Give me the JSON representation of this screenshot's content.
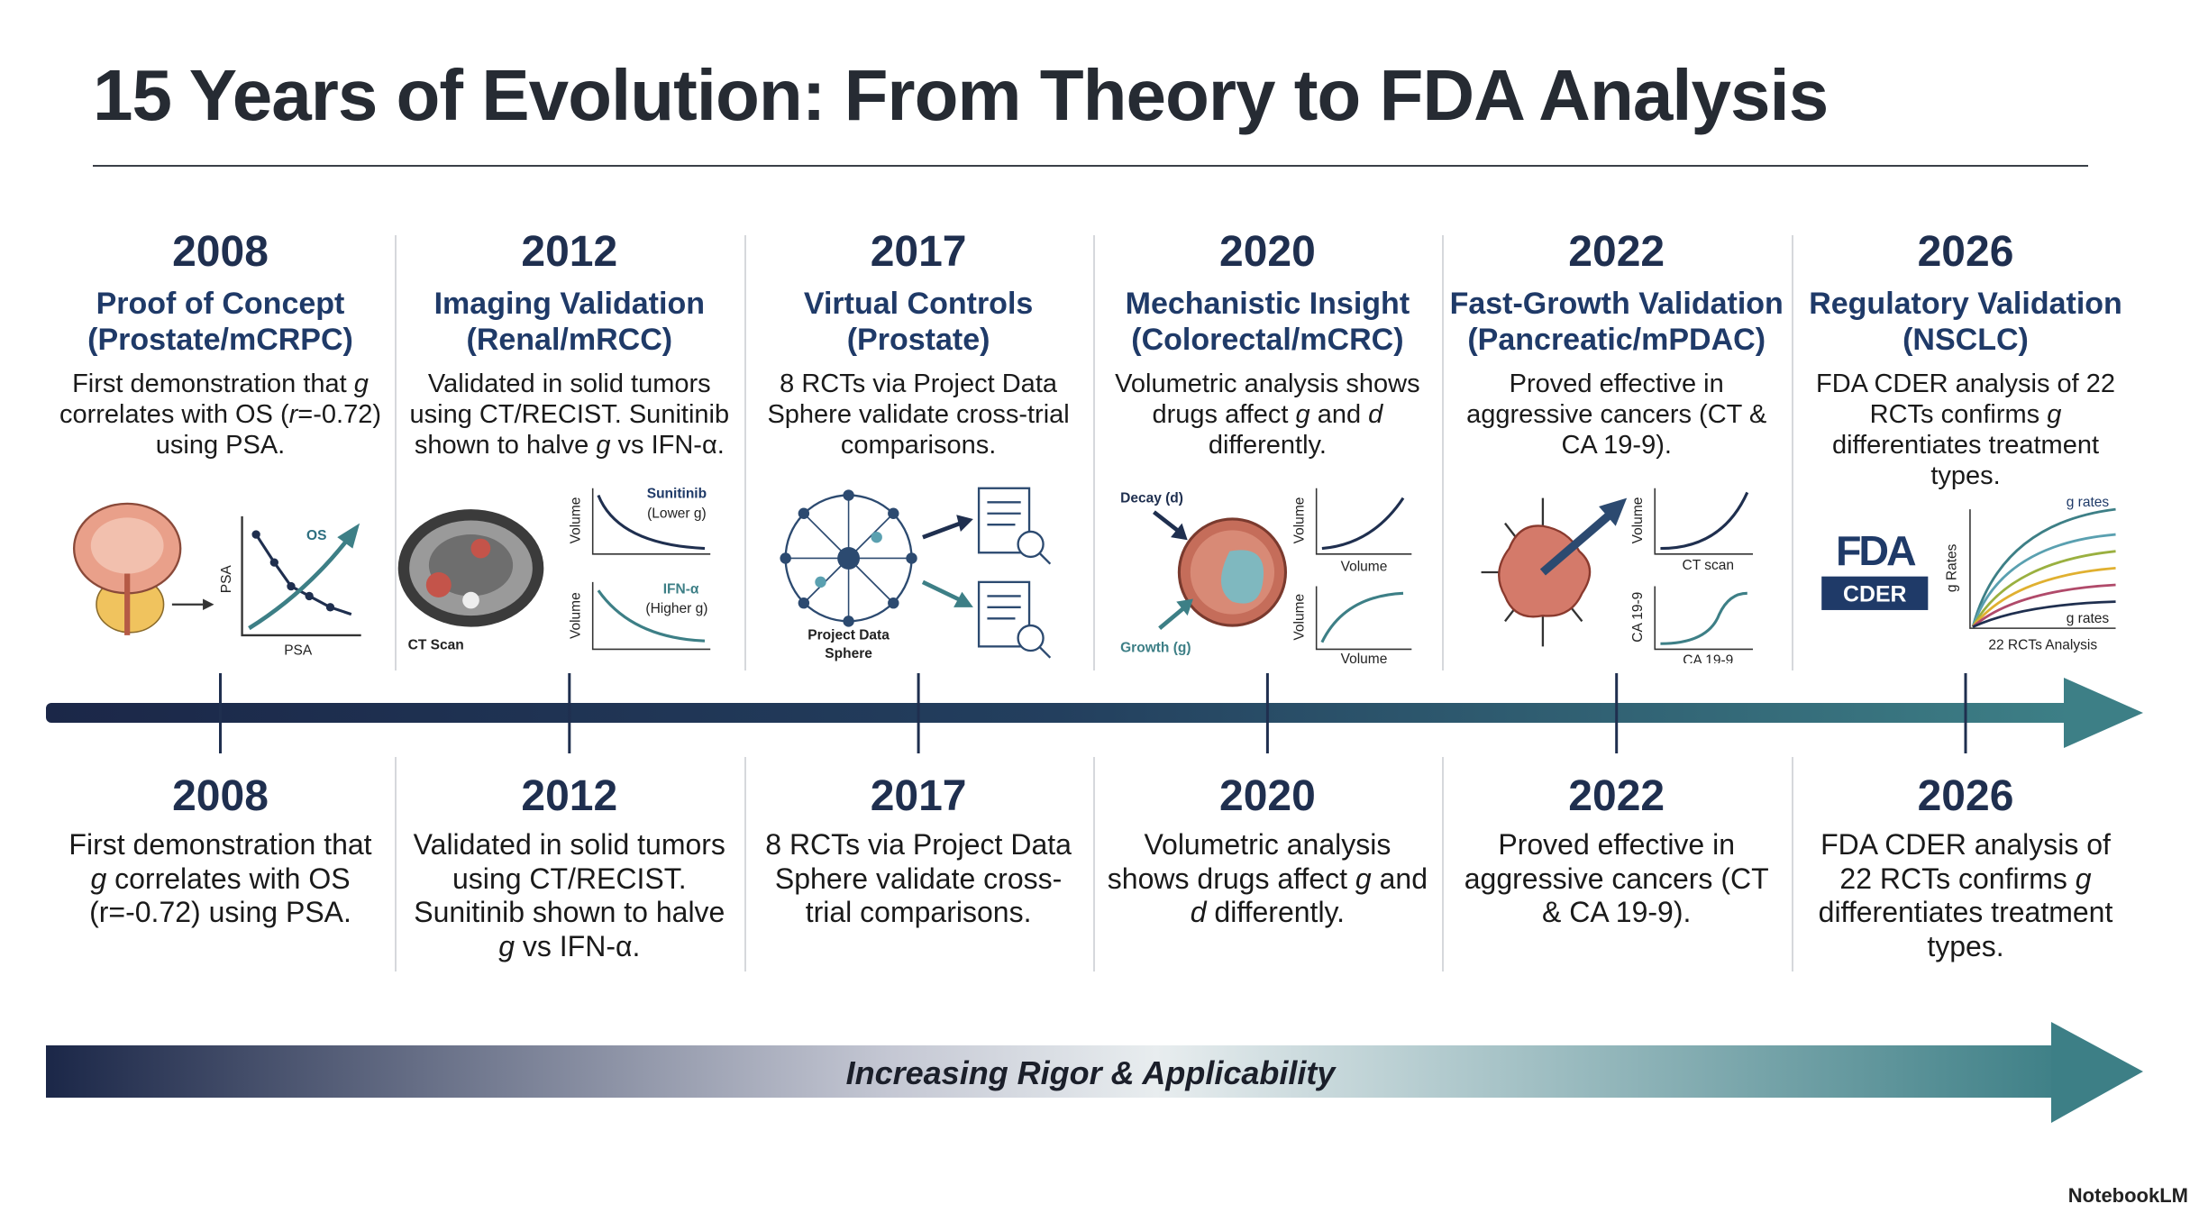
{
  "title": "15 Years of Evolution: From Theory to FDA Analysis",
  "milestones": [
    {
      "year": "2008",
      "heading": [
        "Proof of Concept",
        "(Prostate/mCRPC)"
      ],
      "description": [
        "First demonstration that ",
        "g",
        " correlates with OS (",
        "r",
        "=-0.72) using PSA."
      ],
      "icon_labels": [
        "OS",
        "PSA",
        "PSA"
      ]
    },
    {
      "year": "2012",
      "heading": [
        "Imaging Validation",
        "(Renal/mRCC)"
      ],
      "description": [
        "Validated in solid tumors using CT/RECIST. Sunitinib shown to halve ",
        "g",
        " vs IFN-α."
      ],
      "icon_labels": [
        "CT Scan",
        "Volume",
        "Sunitinib",
        "(Lower g)",
        "Volume",
        "IFN-α",
        "(Higher g)"
      ]
    },
    {
      "year": "2017",
      "heading": [
        "Virtual Controls",
        "(Prostate)"
      ],
      "description": [
        "8 RCTs via Project Data Sphere validate cross-trial comparisons."
      ],
      "icon_labels": [
        "Project Data",
        "Sphere"
      ]
    },
    {
      "year": "2020",
      "heading": [
        "Mechanistic Insight",
        "(Colorectal/mCRC)"
      ],
      "description": [
        "Volumetric analysis shows drugs affect ",
        "g",
        " and ",
        "d",
        " differently."
      ],
      "icon_labels": [
        "Decay (d)",
        "Growth (g)",
        "Volume",
        "Volume",
        "Volume",
        "Volume"
      ]
    },
    {
      "year": "2022",
      "heading": [
        "Fast-Growth Validation",
        "(Pancreatic/mPDAC)"
      ],
      "description": [
        "Proved effective in aggressive cancers (CT & CA 19-9)."
      ],
      "icon_labels": [
        "Volume",
        "CT scan",
        "CA 19-9",
        "CA 19-9"
      ]
    },
    {
      "year": "2026",
      "heading": [
        "Regulatory Validation",
        "(NSCLC)"
      ],
      "description": [
        "FDA CDER analysis of 22 RCTs confirms ",
        "g",
        " differentiates treatment types."
      ],
      "icon_labels": [
        "FDA",
        "CDER",
        "g rates",
        "g Rates",
        "g rates",
        "22 RCTs Analysis"
      ]
    }
  ],
  "summary": [
    {
      "year": "2008",
      "description": [
        "First demonstration that ",
        "g",
        " correlates with OS (r=-0.72) using PSA."
      ]
    },
    {
      "year": "2012",
      "description": [
        "Validated in solid tumors using CT/RECIST. Sunitinib shown to halve ",
        "g",
        " vs IFN-α."
      ]
    },
    {
      "year": "2017",
      "description": [
        "8 RCTs via Project Data Sphere validate cross-trial comparisons."
      ]
    },
    {
      "year": "2020",
      "description": [
        "Volumetric analysis shows drugs affect ",
        "g",
        " and ",
        "d",
        " differently."
      ]
    },
    {
      "year": "2022",
      "description": [
        "Proved effective in aggressive cancers (CT & CA 19-9)."
      ]
    },
    {
      "year": "2026",
      "description": [
        "FDA CDER analysis of 22 RCTs confirms ",
        "g",
        " differentiates treatment types."
      ]
    }
  ],
  "progress_label": "Increasing Rigor & Applicability",
  "brand": "NotebookLM"
}
